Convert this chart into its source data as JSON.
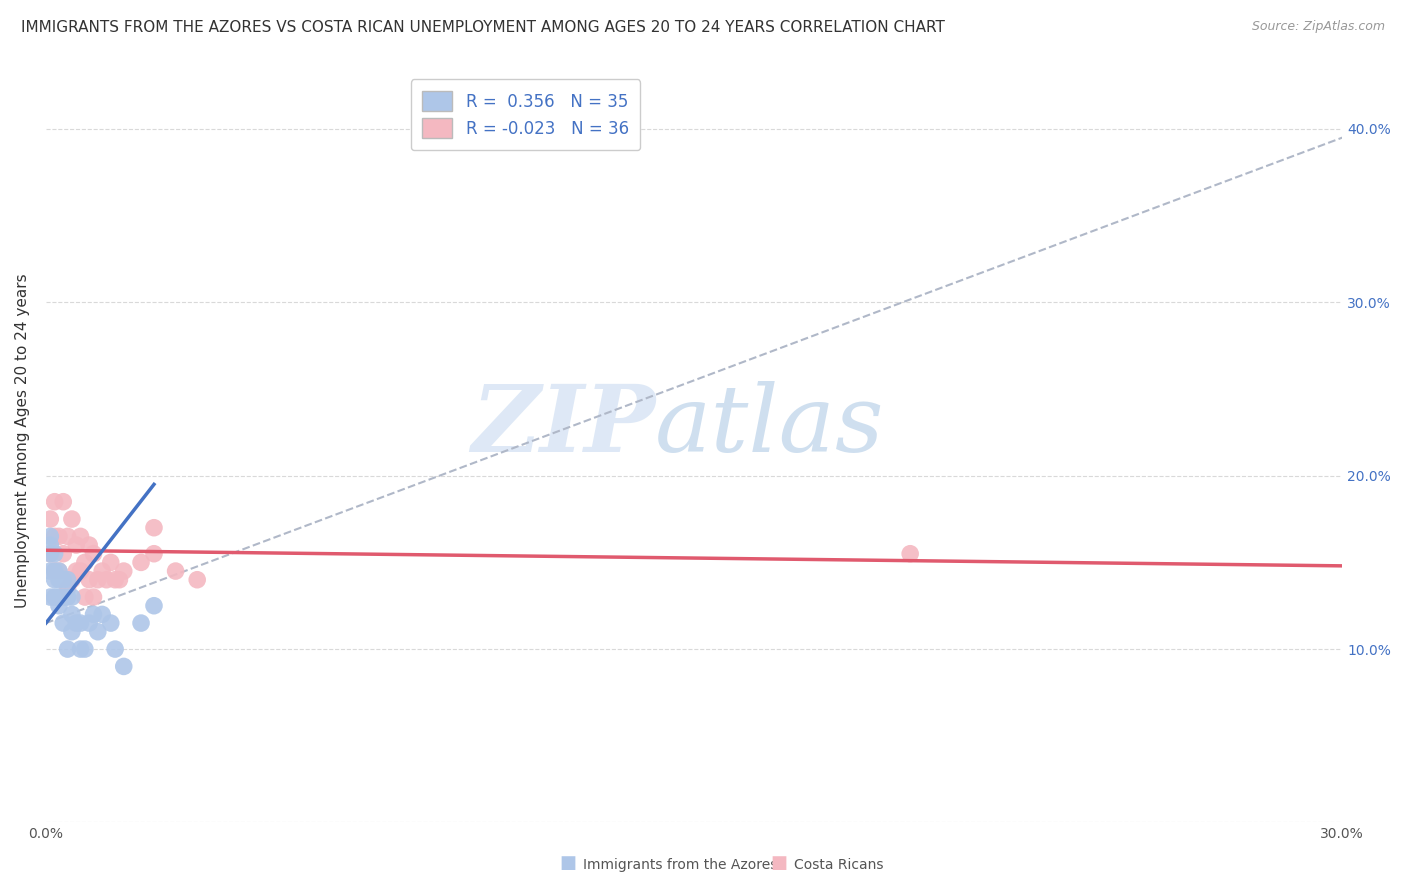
{
  "title": "IMMIGRANTS FROM THE AZORES VS COSTA RICAN UNEMPLOYMENT AMONG AGES 20 TO 24 YEARS CORRELATION CHART",
  "source": "Source: ZipAtlas.com",
  "ylabel": "Unemployment Among Ages 20 to 24 years",
  "xlim": [
    0.0,
    0.3
  ],
  "ylim": [
    0.0,
    0.44
  ],
  "x_ticks": [
    0.0,
    0.05,
    0.1,
    0.15,
    0.2,
    0.25,
    0.3
  ],
  "x_tick_labels": [
    "0.0%",
    "",
    "",
    "",
    "",
    "",
    "30.0%"
  ],
  "y_ticks": [
    0.0,
    0.1,
    0.2,
    0.3,
    0.4
  ],
  "y_tick_labels_right": [
    "",
    "10.0%",
    "20.0%",
    "30.0%",
    "40.0%"
  ],
  "legend_r1": "R =  0.356",
  "legend_n1": "N = 35",
  "legend_r2": "R = -0.023",
  "legend_n2": "N = 36",
  "blue_color": "#aec6e8",
  "pink_color": "#f4b8c1",
  "blue_line_color": "#4472c4",
  "pink_line_color": "#e05a6e",
  "dashed_line_color": "#b0b8c8",
  "watermark_zip": "ZIP",
  "watermark_atlas": "atlas",
  "blue_scatter_x": [
    0.001,
    0.001,
    0.001,
    0.001,
    0.001,
    0.002,
    0.002,
    0.002,
    0.002,
    0.003,
    0.003,
    0.003,
    0.003,
    0.004,
    0.004,
    0.004,
    0.005,
    0.005,
    0.005,
    0.006,
    0.006,
    0.006,
    0.007,
    0.008,
    0.008,
    0.009,
    0.01,
    0.011,
    0.012,
    0.013,
    0.015,
    0.016,
    0.018,
    0.022,
    0.025
  ],
  "blue_scatter_y": [
    0.13,
    0.145,
    0.155,
    0.16,
    0.165,
    0.13,
    0.14,
    0.145,
    0.155,
    0.125,
    0.13,
    0.14,
    0.145,
    0.115,
    0.13,
    0.14,
    0.1,
    0.13,
    0.14,
    0.11,
    0.12,
    0.13,
    0.115,
    0.1,
    0.115,
    0.1,
    0.115,
    0.12,
    0.11,
    0.12,
    0.115,
    0.1,
    0.09,
    0.115,
    0.125
  ],
  "pink_scatter_x": [
    0.001,
    0.001,
    0.002,
    0.002,
    0.002,
    0.003,
    0.003,
    0.004,
    0.004,
    0.005,
    0.005,
    0.006,
    0.006,
    0.007,
    0.007,
    0.008,
    0.008,
    0.009,
    0.009,
    0.01,
    0.01,
    0.011,
    0.011,
    0.012,
    0.013,
    0.014,
    0.015,
    0.016,
    0.017,
    0.018,
    0.022,
    0.025,
    0.03,
    0.035,
    0.2,
    0.025
  ],
  "pink_scatter_y": [
    0.155,
    0.175,
    0.145,
    0.165,
    0.185,
    0.145,
    0.165,
    0.155,
    0.185,
    0.135,
    0.165,
    0.14,
    0.175,
    0.145,
    0.16,
    0.145,
    0.165,
    0.13,
    0.15,
    0.14,
    0.16,
    0.13,
    0.155,
    0.14,
    0.145,
    0.14,
    0.15,
    0.14,
    0.14,
    0.145,
    0.15,
    0.155,
    0.145,
    0.14,
    0.155,
    0.17
  ],
  "blue_line_x": [
    0.0,
    0.025
  ],
  "blue_line_y": [
    0.115,
    0.195
  ],
  "dashed_line_x": [
    0.0,
    0.3
  ],
  "dashed_line_y": [
    0.115,
    0.395
  ],
  "pink_line_x": [
    0.0,
    0.3
  ],
  "pink_line_y": [
    0.157,
    0.148
  ],
  "grid_color": "#d0d0d0",
  "background_color": "#ffffff",
  "title_fontsize": 11,
  "axis_label_fontsize": 11,
  "tick_fontsize": 10,
  "legend_label_color": "#4472c4",
  "bottom_legend_color": "#555555"
}
